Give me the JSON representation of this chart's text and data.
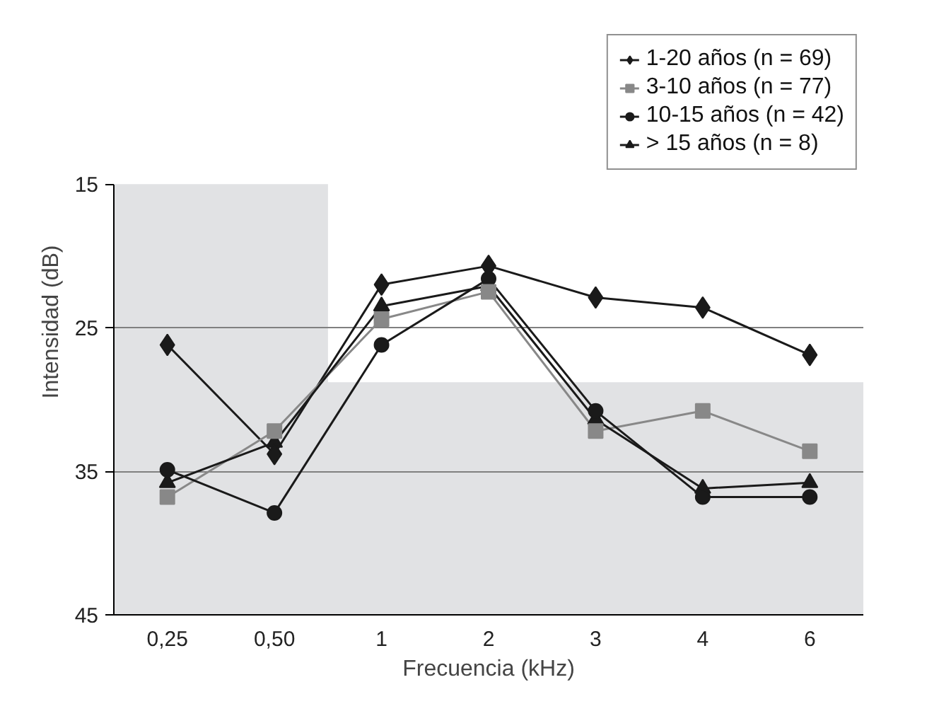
{
  "chart_data": {
    "type": "line",
    "xlabel": "Frecuencia (kHz)",
    "ylabel": "Intensidad (dB)",
    "categories": [
      "0,25",
      "0,50",
      "1",
      "2",
      "3",
      "4",
      "6"
    ],
    "ylim": [
      45,
      15
    ],
    "yticks": [
      15,
      25,
      35,
      45
    ],
    "grid": "y",
    "legend": "top right",
    "bands": [
      {
        "axis": "x",
        "from": "0,25",
        "to": "0,50",
        "color": "#e1e2e4"
      },
      {
        "axis": "y",
        "from": 28.8,
        "to": 45,
        "color": "#e1e2e4"
      }
    ],
    "series": [
      {
        "name": "1-20 años (n = 69)",
        "color": "#1a1a1a",
        "marker": "diamond",
        "values": [
          26.2,
          33.8,
          22.0,
          20.7,
          22.9,
          23.6,
          26.9
        ]
      },
      {
        "name": "3-10 años (n = 77)",
        "color": "#888888",
        "marker": "square",
        "values": [
          36.8,
          32.2,
          24.4,
          22.5,
          32.2,
          30.8,
          33.6
        ]
      },
      {
        "name": "10-15 años (n = 42)",
        "color": "#1a1a1a",
        "marker": "circle",
        "values": [
          34.9,
          37.9,
          26.2,
          21.6,
          30.8,
          36.8,
          36.8
        ]
      },
      {
        "name": "> 15 años (n = 8)",
        "color": "#1a1a1a",
        "marker": "triangle",
        "values": [
          35.8,
          33.0,
          23.5,
          22.1,
          31.4,
          36.2,
          35.8
        ]
      }
    ]
  }
}
